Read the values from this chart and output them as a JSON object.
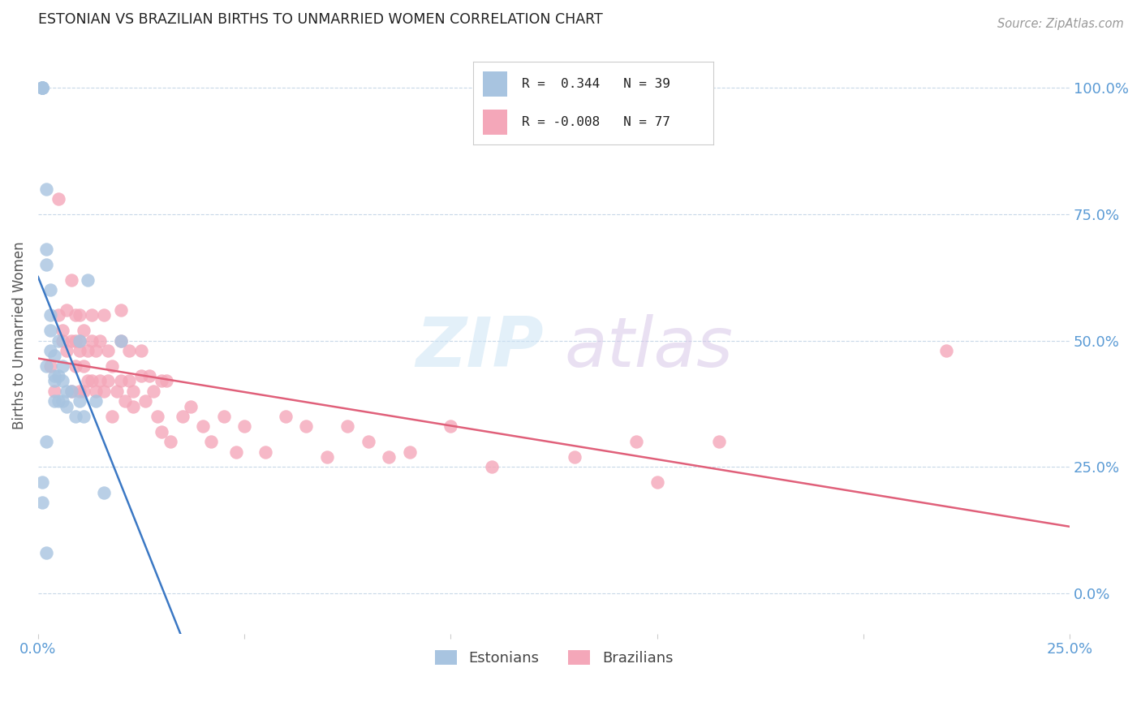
{
  "title": "ESTONIAN VS BRAZILIAN BIRTHS TO UNMARRIED WOMEN CORRELATION CHART",
  "source": "Source: ZipAtlas.com",
  "ylabel": "Births to Unmarried Women",
  "xlim": [
    0.0,
    0.25
  ],
  "ylim": [
    -0.08,
    1.1
  ],
  "estonian_color": "#a8c4e0",
  "brazilian_color": "#f4a7b9",
  "trendline_estonian_color": "#3b78c4",
  "trendline_brazilian_color": "#e0607a",
  "grid_color": "#c8d8e8",
  "tick_color": "#5b9bd5",
  "right_yticks": [
    0.0,
    0.25,
    0.5,
    0.75,
    1.0
  ],
  "right_ytick_labels": [
    "0.0%",
    "25.0%",
    "50.0%",
    "75.0%",
    "100.0%"
  ],
  "xtick_positions": [
    0.0,
    0.05,
    0.1,
    0.15,
    0.2,
    0.25
  ],
  "xtick_labels": [
    "0.0%",
    "",
    "",
    "",
    "",
    "25.0%"
  ],
  "estonian_x": [
    0.001,
    0.001,
    0.001,
    0.001,
    0.001,
    0.001,
    0.002,
    0.002,
    0.002,
    0.002,
    0.003,
    0.003,
    0.003,
    0.003,
    0.004,
    0.004,
    0.004,
    0.004,
    0.005,
    0.005,
    0.005,
    0.006,
    0.006,
    0.006,
    0.007,
    0.007,
    0.008,
    0.009,
    0.01,
    0.01,
    0.011,
    0.012,
    0.014,
    0.016,
    0.02,
    0.001,
    0.001,
    0.002,
    0.002
  ],
  "estonian_y": [
    1.0,
    1.0,
    1.0,
    1.0,
    1.0,
    1.0,
    0.8,
    0.68,
    0.65,
    0.45,
    0.6,
    0.55,
    0.52,
    0.48,
    0.47,
    0.43,
    0.42,
    0.38,
    0.5,
    0.43,
    0.38,
    0.45,
    0.42,
    0.38,
    0.4,
    0.37,
    0.4,
    0.35,
    0.5,
    0.38,
    0.35,
    0.62,
    0.38,
    0.2,
    0.5,
    0.22,
    0.18,
    0.3,
    0.08
  ],
  "brazilian_x": [
    0.003,
    0.004,
    0.005,
    0.005,
    0.006,
    0.006,
    0.007,
    0.007,
    0.008,
    0.008,
    0.008,
    0.009,
    0.009,
    0.009,
    0.01,
    0.01,
    0.01,
    0.01,
    0.011,
    0.011,
    0.011,
    0.012,
    0.012,
    0.013,
    0.013,
    0.013,
    0.014,
    0.014,
    0.015,
    0.015,
    0.016,
    0.016,
    0.017,
    0.017,
    0.018,
    0.018,
    0.019,
    0.02,
    0.02,
    0.02,
    0.021,
    0.022,
    0.022,
    0.023,
    0.023,
    0.025,
    0.025,
    0.026,
    0.027,
    0.028,
    0.029,
    0.03,
    0.03,
    0.031,
    0.032,
    0.035,
    0.037,
    0.04,
    0.042,
    0.045,
    0.048,
    0.05,
    0.055,
    0.06,
    0.065,
    0.07,
    0.075,
    0.08,
    0.085,
    0.09,
    0.1,
    0.11,
    0.13,
    0.145,
    0.15,
    0.165,
    0.22
  ],
  "brazilian_y": [
    0.45,
    0.4,
    0.78,
    0.55,
    0.52,
    0.5,
    0.48,
    0.56,
    0.5,
    0.62,
    0.4,
    0.55,
    0.5,
    0.45,
    0.55,
    0.5,
    0.48,
    0.4,
    0.52,
    0.45,
    0.4,
    0.48,
    0.42,
    0.55,
    0.5,
    0.42,
    0.48,
    0.4,
    0.5,
    0.42,
    0.55,
    0.4,
    0.48,
    0.42,
    0.45,
    0.35,
    0.4,
    0.5,
    0.42,
    0.56,
    0.38,
    0.48,
    0.42,
    0.4,
    0.37,
    0.43,
    0.48,
    0.38,
    0.43,
    0.4,
    0.35,
    0.42,
    0.32,
    0.42,
    0.3,
    0.35,
    0.37,
    0.33,
    0.3,
    0.35,
    0.28,
    0.33,
    0.28,
    0.35,
    0.33,
    0.27,
    0.33,
    0.3,
    0.27,
    0.28,
    0.33,
    0.25,
    0.27,
    0.3,
    0.22,
    0.3,
    0.48
  ]
}
